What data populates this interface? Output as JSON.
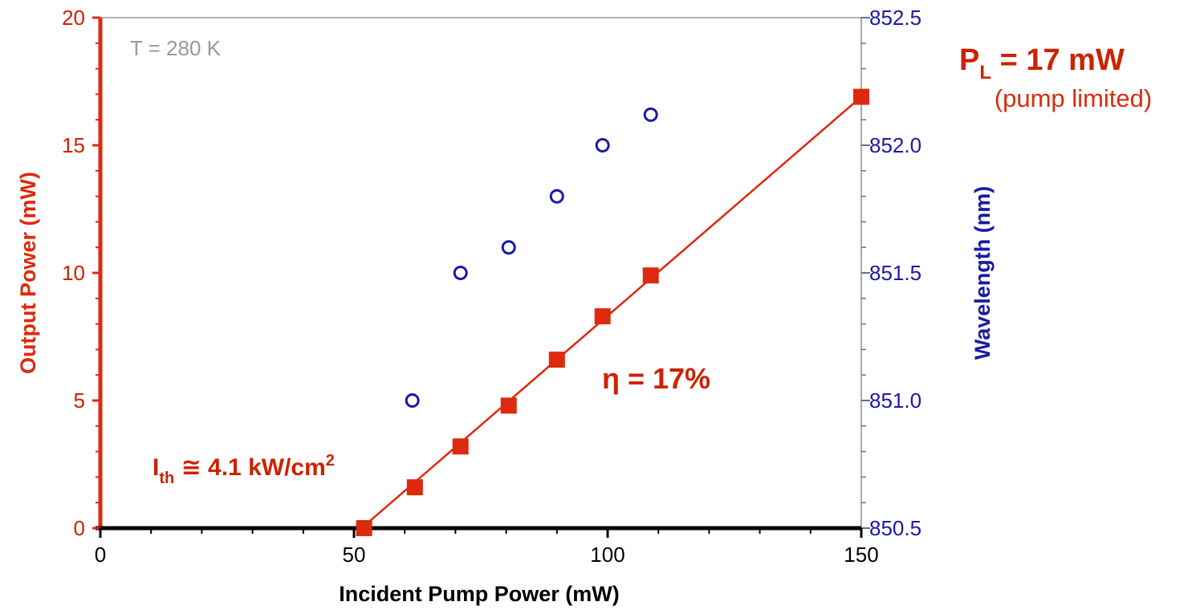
{
  "chart_data": {
    "type": "scatter",
    "xlabel": "Incident Pump Power (mW)",
    "ylabel_left": "Output Power (mW)",
    "ylabel_right": "Wavelength (nm)",
    "xlim": [
      0,
      150
    ],
    "ylim_left": [
      0,
      20
    ],
    "ylim_right": [
      850.5,
      852.5
    ],
    "x_ticks": [
      "0",
      "50",
      "100",
      "150"
    ],
    "y_left_ticks": [
      "0",
      "5",
      "10",
      "15",
      "20"
    ],
    "y_right_ticks": [
      "850.5",
      "851.0",
      "851.5",
      "852.0",
      "852.5"
    ],
    "grid": false,
    "colors": {
      "output": "#dd2a0e",
      "wavelength": "#1a1aa6",
      "axis": "#000000",
      "temp_text": "#999999"
    },
    "series": [
      {
        "axis": "left",
        "marker": "filled-square",
        "x": [
          52,
          62,
          71,
          80.5,
          90,
          99,
          108.5,
          150
        ],
        "y": [
          0.0,
          1.6,
          3.2,
          4.8,
          6.6,
          8.3,
          9.9,
          16.9
        ]
      },
      {
        "axis": "right",
        "marker": "open-circle",
        "x": [
          61.5,
          71,
          80.5,
          90,
          99,
          108.5
        ],
        "y": [
          851.0,
          851.5,
          851.6,
          851.8,
          852.0,
          852.12
        ]
      }
    ],
    "fit_line": {
      "x": [
        51.5,
        150
      ],
      "y": [
        0.0,
        16.9
      ]
    },
    "annotations": {
      "temperature": "T = 280 K",
      "efficiency": "η = 17%",
      "threshold_main": "I",
      "threshold_sub": "th",
      "threshold_rest": " ≅ 4.1 kW/cm",
      "threshold_sup": "2",
      "power_main": "P",
      "power_sub": "L",
      "power_rest": " = 17 mW",
      "power_note": "(pump limited)"
    }
  }
}
